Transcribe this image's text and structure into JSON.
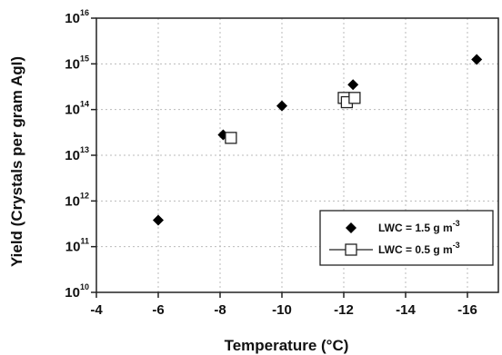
{
  "chart_data": {
    "type": "scatter",
    "xlabel": "Temperature (°C)",
    "ylabel": "Yield (Crystals per gram AgI)",
    "x_axis_reversed": true,
    "xlim": [
      -4,
      -17
    ],
    "xticks": [
      -4,
      -6,
      -8,
      -10,
      -12,
      -14,
      -16
    ],
    "ylog": true,
    "ylim": [
      10000000000.0,
      1e+16
    ],
    "ytick_exponents": [
      10,
      11,
      12,
      13,
      14,
      15,
      16
    ],
    "grid": "dotted vertical and horizontal at major ticks",
    "legend_position": "bottom-right",
    "series": [
      {
        "name": "LWC = 1.5 g m",
        "name_superscript": "-3",
        "marker": "filled-diamond",
        "color": "#000000",
        "points": [
          {
            "x": -6,
            "y": 380000000000.0
          },
          {
            "x": -8.1,
            "y": 28000000000000.0
          },
          {
            "x": -10,
            "y": 120000000000000.0
          },
          {
            "x": -12.3,
            "y": 350000000000000.0
          },
          {
            "x": -16.3,
            "y": 1250000000000000.0
          }
        ]
      },
      {
        "name": "LWC = 0.5 g m",
        "name_superscript": "-3",
        "marker": "open-square",
        "color": "#000000",
        "points": [
          {
            "x": -8.35,
            "y": 24000000000000.0
          },
          {
            "x": -12.0,
            "y": 180000000000000.0
          },
          {
            "x": -12.1,
            "y": 145000000000000.0
          },
          {
            "x": -12.35,
            "y": 180000000000000.0
          }
        ]
      }
    ]
  }
}
